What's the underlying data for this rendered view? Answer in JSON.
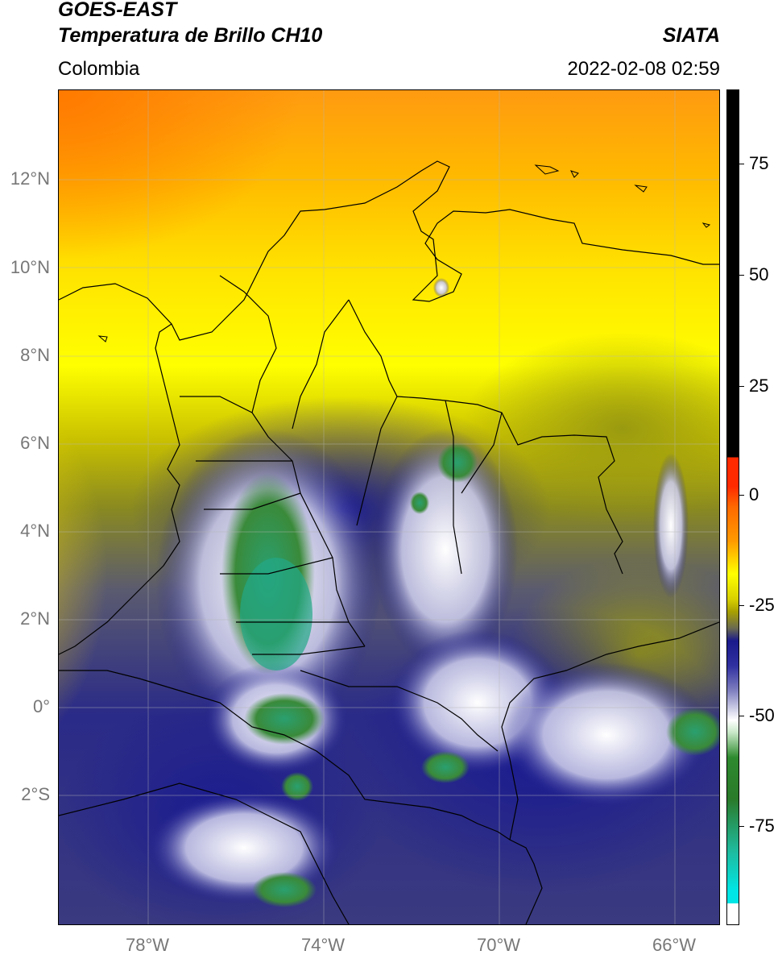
{
  "header": {
    "satellite": "GOES-EAST",
    "product": "Temperatura de Brillo CH10",
    "agency": "SIATA",
    "region": "Colombia",
    "datetime": "2022-02-08 02:59"
  },
  "map": {
    "lat_labels": [
      "12°N",
      "10°N",
      "8°N",
      "6°N",
      "4°N",
      "2°N",
      "0°",
      "2°S"
    ],
    "lon_labels": [
      "78°W",
      "74°W",
      "70°W",
      "66°W"
    ],
    "lat_range": [
      -4.9,
      14.0
    ],
    "lon_range": [
      -80.0,
      -65.0
    ],
    "grid": true
  },
  "colorbar": {
    "labels": [
      "75",
      "50",
      "25",
      "0",
      "-25",
      "-50",
      "-75"
    ],
    "range": [
      -95,
      90
    ],
    "colors": {
      "black": "#000000",
      "red": "#ff2a00",
      "orange": "#ff9900",
      "yellow": "#ffff00",
      "olive": "#a8a000",
      "gray": "#6a6a50",
      "navy": "#1a1a8c",
      "white": "#ffffff",
      "green": "#2e8a2e",
      "teal": "#20b89a",
      "cyan": "#00e5e5"
    }
  }
}
